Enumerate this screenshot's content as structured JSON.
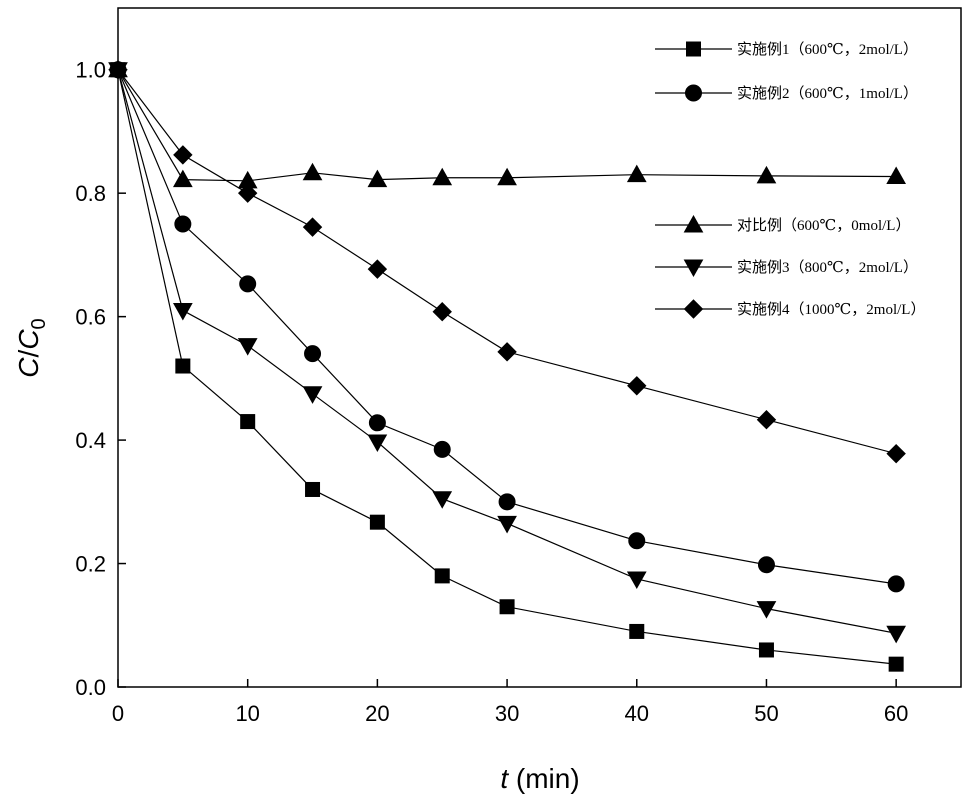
{
  "chart_data": {
    "type": "line",
    "xlabel_var": "t",
    "xlabel_unit": " (min)",
    "ylabel_var1": "C",
    "ylabel_sep": "/",
    "ylabel_var2": "C",
    "ylabel_sub": "0",
    "xlim": [
      0,
      65
    ],
    "ylim": [
      0,
      1.1
    ],
    "xticks": [
      0,
      10,
      20,
      30,
      40,
      50,
      60
    ],
    "yticks": [
      0.0,
      0.2,
      0.4,
      0.6,
      0.8,
      1.0
    ],
    "xtick_labels": [
      "0",
      "10",
      "20",
      "30",
      "40",
      "50",
      "60"
    ],
    "ytick_labels": [
      "0.0",
      "0.2",
      "0.4",
      "0.6",
      "0.8",
      "1.0"
    ],
    "grid": false,
    "legend_position": "right",
    "line_color": "#000000",
    "x": [
      0,
      5,
      10,
      15,
      20,
      25,
      30,
      40,
      50,
      60
    ],
    "series": [
      {
        "name": "实施例1（600℃，2mol/L）",
        "marker": "square",
        "values": [
          1.0,
          0.52,
          0.43,
          0.32,
          0.267,
          0.18,
          0.13,
          0.09,
          0.06,
          0.037
        ]
      },
      {
        "name": "实施例2（600℃，1mol/L）",
        "marker": "circle",
        "values": [
          1.0,
          0.75,
          0.653,
          0.54,
          0.428,
          0.385,
          0.3,
          0.237,
          0.198,
          0.167
        ]
      },
      {
        "name": "对比例（600℃，0mol/L）",
        "marker": "triangle-up",
        "values": [
          1.0,
          0.822,
          0.82,
          0.833,
          0.822,
          0.825,
          0.825,
          0.83,
          0.828,
          0.827
        ]
      },
      {
        "name": "实施例3（800℃，2mol/L）",
        "marker": "triangle-down",
        "values": [
          1.0,
          0.61,
          0.553,
          0.475,
          0.397,
          0.305,
          0.265,
          0.175,
          0.127,
          0.087
        ]
      },
      {
        "name": "实施例4（1000℃，2mol/L）",
        "marker": "diamond",
        "values": [
          1.0,
          0.862,
          0.8,
          0.745,
          0.677,
          0.608,
          0.543,
          0.488,
          0.433,
          0.378
        ]
      }
    ]
  }
}
